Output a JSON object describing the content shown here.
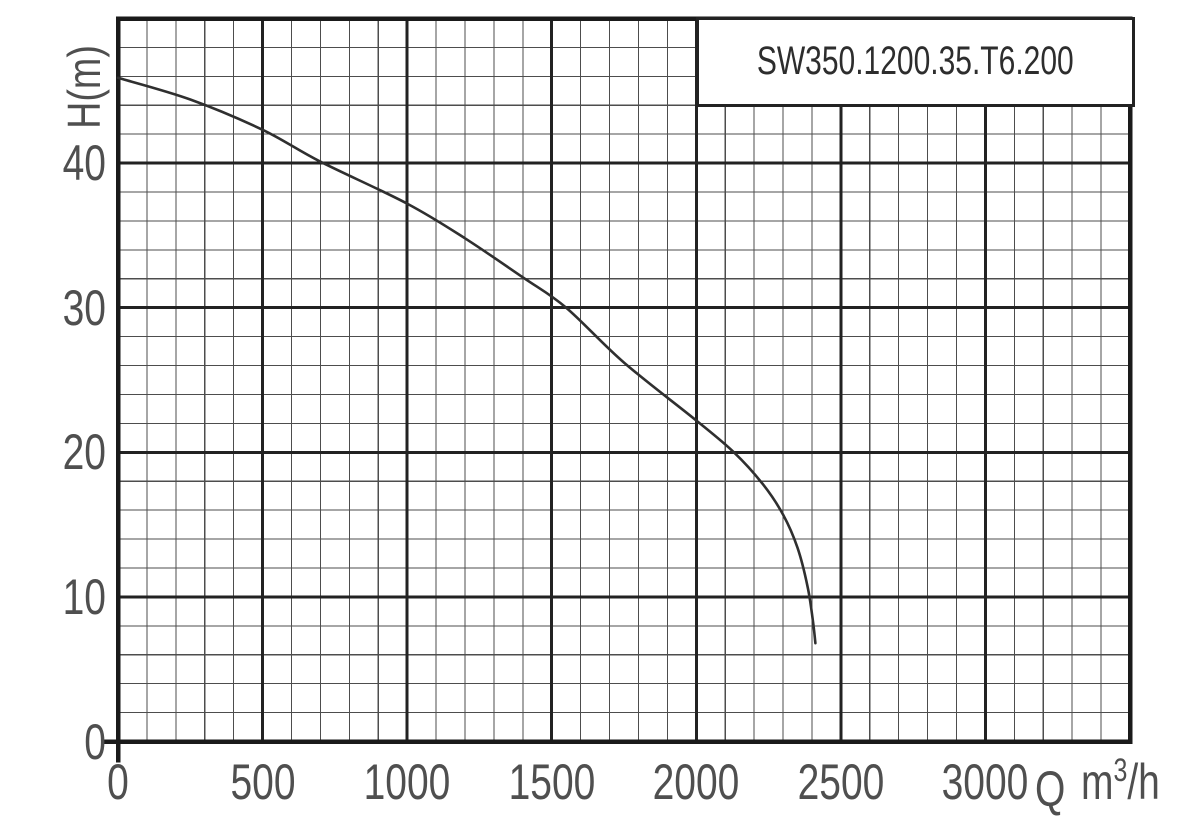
{
  "title_box": {
    "label": "SW350.1200.35.T6.200"
  },
  "axes": {
    "y_label": "H(m)",
    "x_unit_q": "Q",
    "x_unit_m": "m",
    "x_unit_sup": "3",
    "x_unit_rest": "/h"
  },
  "chart_data": {
    "type": "line",
    "title": "SW350.1200.35.T6.200",
    "xlabel": "Q m³/h",
    "ylabel": "H(m)",
    "xlim": [
      0,
      3500
    ],
    "ylim": [
      0,
      50
    ],
    "x_major_step": 500,
    "x_minor_step": 100,
    "y_major_step": 10,
    "y_minor_step": 2,
    "x_ticks": [
      0,
      500,
      1000,
      1500,
      2000,
      2500,
      3000
    ],
    "y_ticks": [
      0,
      10,
      20,
      30,
      40
    ],
    "grid": true,
    "legend": false,
    "series": [
      {
        "name": "SW350.1200.35.T6.200",
        "points": [
          [
            0,
            45.9
          ],
          [
            250,
            44.4
          ],
          [
            500,
            42.3
          ],
          [
            700,
            40.1
          ],
          [
            1000,
            37.2
          ],
          [
            1200,
            34.8
          ],
          [
            1400,
            32.1
          ],
          [
            1550,
            30.0
          ],
          [
            1750,
            26.2
          ],
          [
            2000,
            22.2
          ],
          [
            2130,
            20.0
          ],
          [
            2230,
            17.8
          ],
          [
            2300,
            15.7
          ],
          [
            2350,
            13.4
          ],
          [
            2385,
            10.7
          ],
          [
            2403,
            8.4
          ],
          [
            2412,
            6.8
          ]
        ]
      }
    ]
  },
  "colors": {
    "curve": "#2f2f2f",
    "major_grid": "#222222",
    "minor_grid": "#4d4d4d",
    "border": "#1a1a1a",
    "label": "#4f4f4f",
    "background": "#ffffff"
  }
}
